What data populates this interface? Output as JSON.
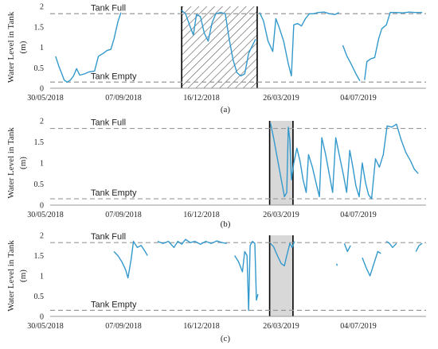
{
  "colors": {
    "series": "#3399cc",
    "reference_line": "#999999",
    "axis": "#999999",
    "shade_fill": "#d8d8d8",
    "hatch_stroke": "#555555",
    "highlight_border": "#000000"
  },
  "chart_data": [
    {
      "type": "line",
      "panel_label": "(a)",
      "ylabel_line1": "Water Level in  Tank",
      "ylabel_line2": "(m)",
      "xlabel": "",
      "x_tick_labels": [
        "30/05/2018",
        "07/09/2018",
        "16/12/2018",
        "26/03/2019",
        "04/07/2019"
      ],
      "y_ticks": [
        "0",
        "0.5",
        "1",
        "1.5",
        "2"
      ],
      "ylim": [
        0,
        2
      ],
      "xlim": [
        "2018-05-30",
        "2019-09-25"
      ],
      "grid": false,
      "reference_lines": [
        {
          "label": "Tank Full",
          "value": 1.82
        },
        {
          "label": "Tank Empty",
          "value": 0.15
        }
      ],
      "highlight": {
        "style": "hatched",
        "start": "2018-11-15",
        "end": "2019-02-20"
      },
      "series": [
        {
          "segments": [
            [
              [
                "2018-06-06",
                0.78
              ],
              [
                "2018-06-10",
                0.55
              ],
              [
                "2018-06-14",
                0.35
              ],
              [
                "2018-06-17",
                0.2
              ],
              [
                "2018-06-21",
                0.15
              ],
              [
                "2018-06-25",
                0.2
              ],
              [
                "2018-06-29",
                0.3
              ],
              [
                "2018-07-03",
                0.48
              ],
              [
                "2018-07-07",
                0.32
              ],
              [
                "2018-07-13",
                0.35
              ],
              [
                "2018-07-19",
                0.4
              ],
              [
                "2018-07-26",
                0.42
              ],
              [
                "2018-07-31",
                0.78
              ],
              [
                "2018-08-06",
                0.85
              ],
              [
                "2018-08-11",
                0.92
              ],
              [
                "2018-08-16",
                0.95
              ],
              [
                "2018-08-20",
                1.2
              ],
              [
                "2018-08-25",
                1.62
              ],
              [
                "2018-08-29",
                1.85
              ]
            ],
            [
              [
                "2018-11-15",
                1.9
              ],
              [
                "2018-11-20",
                1.82
              ],
              [
                "2018-11-25",
                1.55
              ],
              [
                "2018-11-30",
                1.3
              ],
              [
                "2018-12-04",
                1.8
              ],
              [
                "2018-12-09",
                1.75
              ],
              [
                "2018-12-14",
                1.35
              ],
              [
                "2018-12-19",
                1.15
              ],
              [
                "2018-12-24",
                1.6
              ],
              [
                "2018-12-29",
                1.82
              ],
              [
                "2019-01-04",
                1.85
              ],
              [
                "2019-01-10",
                1.82
              ],
              [
                "2019-01-15",
                1.2
              ],
              [
                "2019-01-20",
                0.7
              ],
              [
                "2019-01-25",
                0.38
              ],
              [
                "2019-01-30",
                0.3
              ],
              [
                "2019-02-04",
                0.35
              ],
              [
                "2019-02-09",
                0.85
              ],
              [
                "2019-02-14",
                1.05
              ],
              [
                "2019-02-18",
                1.2
              ]
            ],
            [
              [
                "2019-02-23",
                1.85
              ],
              [
                "2019-02-28",
                1.65
              ],
              [
                "2019-03-06",
                1.15
              ],
              [
                "2019-03-12",
                0.9
              ],
              [
                "2019-03-16",
                1.7
              ],
              [
                "2019-03-20",
                1.5
              ],
              [
                "2019-03-26",
                1.15
              ],
              [
                "2019-04-01",
                0.6
              ],
              [
                "2019-04-05",
                0.3
              ],
              [
                "2019-04-08",
                1.55
              ],
              [
                "2019-04-13",
                1.58
              ],
              [
                "2019-04-18",
                1.52
              ],
              [
                "2019-04-23",
                1.7
              ],
              [
                "2019-04-28",
                1.82
              ],
              [
                "2019-05-03",
                1.82
              ],
              [
                "2019-05-10",
                1.85
              ],
              [
                "2019-05-17",
                1.86
              ],
              [
                "2019-05-24",
                1.82
              ],
              [
                "2019-05-31",
                1.8
              ],
              [
                "2019-06-05",
                1.85
              ]
            ],
            [
              [
                "2019-06-10",
                1.05
              ],
              [
                "2019-06-15",
                0.8
              ],
              [
                "2019-06-21",
                0.58
              ],
              [
                "2019-06-27",
                0.35
              ],
              [
                "2019-07-02",
                0.18
              ]
            ],
            [
              [
                "2019-07-08",
                0.2
              ],
              [
                "2019-07-11",
                0.65
              ],
              [
                "2019-07-16",
                0.72
              ],
              [
                "2019-07-21",
                0.75
              ],
              [
                "2019-07-26",
                1.2
              ],
              [
                "2019-07-30",
                1.45
              ],
              [
                "2019-08-05",
                1.55
              ],
              [
                "2019-08-10",
                1.85
              ],
              [
                "2019-08-18",
                1.85
              ],
              [
                "2019-08-26",
                1.84
              ],
              [
                "2019-09-03",
                1.86
              ],
              [
                "2019-09-10",
                1.85
              ],
              [
                "2019-09-20",
                1.85
              ]
            ]
          ]
        }
      ]
    },
    {
      "type": "line",
      "panel_label": "(b)",
      "ylabel_line1": "Water Level in  Tank",
      "ylabel_line2": "(m)",
      "xlabel": "",
      "x_tick_labels": [
        "30/05/2018",
        "07/09/2018",
        "16/12/2018",
        "26/03/2019",
        "04/07/2019"
      ],
      "y_ticks": [
        "0",
        "0.5",
        "1",
        "1.5",
        "2"
      ],
      "ylim": [
        0,
        2
      ],
      "xlim": [
        "2018-05-30",
        "2019-09-25"
      ],
      "grid": false,
      "reference_lines": [
        {
          "label": "Tank Full",
          "value": 1.82
        },
        {
          "label": "Tank Empty",
          "value": 0.15
        }
      ],
      "highlight": {
        "style": "shaded",
        "start": "2019-03-08",
        "end": "2019-04-07"
      },
      "series": [
        {
          "segments": [
            [
              [
                "2019-03-09",
                1.95
              ],
              [
                "2019-03-13",
                1.6
              ],
              [
                "2019-03-17",
                1.2
              ],
              [
                "2019-03-21",
                0.8
              ],
              [
                "2019-03-25",
                0.4
              ],
              [
                "2019-03-27",
                0.2
              ],
              [
                "2019-03-30",
                0.3
              ],
              [
                "2019-04-01",
                1.85
              ],
              [
                "2019-04-03",
                1.55
              ],
              [
                "2019-04-05",
                0.6
              ],
              [
                "2019-04-08",
                1.0
              ],
              [
                "2019-04-12",
                1.35
              ],
              [
                "2019-04-16",
                1.05
              ],
              [
                "2019-04-20",
                0.6
              ],
              [
                "2019-04-24",
                0.3
              ],
              [
                "2019-04-27",
                1.2
              ],
              [
                "2019-05-02",
                0.9
              ],
              [
                "2019-05-07",
                0.5
              ],
              [
                "2019-05-11",
                0.2
              ],
              [
                "2019-05-14",
                1.6
              ],
              [
                "2019-05-19",
                1.2
              ],
              [
                "2019-05-24",
                0.7
              ],
              [
                "2019-05-28",
                0.3
              ],
              [
                "2019-06-01",
                1.6
              ],
              [
                "2019-06-06",
                1.15
              ],
              [
                "2019-06-11",
                0.7
              ],
              [
                "2019-06-15",
                0.3
              ],
              [
                "2019-06-19",
                1.3
              ],
              [
                "2019-06-23",
                0.9
              ],
              [
                "2019-06-27",
                0.45
              ],
              [
                "2019-07-01",
                0.2
              ],
              [
                "2019-07-05",
                1.0
              ],
              [
                "2019-07-09",
                0.55
              ],
              [
                "2019-07-13",
                0.25
              ],
              [
                "2019-07-17",
                0.15
              ],
              [
                "2019-07-22",
                1.1
              ],
              [
                "2019-07-27",
                0.9
              ],
              [
                "2019-08-01",
                1.2
              ],
              [
                "2019-08-06",
                1.88
              ],
              [
                "2019-08-12",
                1.85
              ],
              [
                "2019-08-18",
                1.92
              ],
              [
                "2019-08-24",
                1.55
              ],
              [
                "2019-08-30",
                1.25
              ],
              [
                "2019-09-05",
                1.05
              ],
              [
                "2019-09-10",
                0.85
              ],
              [
                "2019-09-15",
                0.75
              ]
            ]
          ]
        }
      ]
    },
    {
      "type": "line",
      "panel_label": "(c)",
      "ylabel_line1": "Water Level in  Tank",
      "ylabel_line2": "(m)",
      "xlabel": "",
      "x_tick_labels": [
        "30/05/2018",
        "07/09/2018",
        "16/12/2018",
        "26/03/2019",
        "04/07/2019"
      ],
      "y_ticks": [
        "0",
        "0.5",
        "1",
        "1.5",
        "2"
      ],
      "ylim": [
        0,
        2
      ],
      "xlim": [
        "2018-05-30",
        "2019-09-25"
      ],
      "grid": false,
      "reference_lines": [
        {
          "label": "Tank Full",
          "value": 1.82
        },
        {
          "label": "Tank Empty",
          "value": 0.15
        }
      ],
      "highlight": {
        "style": "shaded",
        "start": "2019-03-08",
        "end": "2019-04-07"
      },
      "series": [
        {
          "segments": [
            [
              [
                "2018-08-20",
                1.6
              ],
              [
                "2018-08-25",
                1.5
              ],
              [
                "2018-08-30",
                1.35
              ],
              [
                "2018-09-04",
                1.15
              ],
              [
                "2018-09-07",
                0.95
              ],
              [
                "2018-09-11",
                1.4
              ],
              [
                "2018-09-14",
                1.85
              ],
              [
                "2018-09-19",
                1.7
              ],
              [
                "2018-09-24",
                1.75
              ],
              [
                "2018-09-29",
                1.6
              ],
              [
                "2018-10-02",
                1.5
              ]
            ],
            [
              [
                "2018-10-15",
                1.85
              ],
              [
                "2018-10-22",
                1.8
              ],
              [
                "2018-10-29",
                1.85
              ],
              [
                "2018-11-05",
                1.7
              ],
              [
                "2018-11-10",
                1.85
              ],
              [
                "2018-11-15",
                1.78
              ],
              [
                "2018-11-20",
                1.9
              ],
              [
                "2018-11-26",
                1.82
              ],
              [
                "2018-12-02",
                1.85
              ],
              [
                "2018-12-09",
                1.78
              ],
              [
                "2018-12-16",
                1.85
              ],
              [
                "2018-12-23",
                1.8
              ],
              [
                "2018-12-30",
                1.86
              ],
              [
                "2019-01-06",
                1.82
              ],
              [
                "2019-01-12",
                1.8
              ]
            ],
            [
              [
                "2019-01-22",
                1.5
              ],
              [
                "2019-01-27",
                1.35
              ],
              [
                "2019-02-01",
                1.1
              ],
              [
                "2019-02-04",
                1.6
              ],
              [
                "2019-02-07",
                1.5
              ],
              [
                "2019-02-09",
                0.15
              ],
              [
                "2019-02-11",
                1.75
              ],
              [
                "2019-02-14",
                1.85
              ],
              [
                "2019-02-17",
                1.8
              ],
              [
                "2019-02-19",
                0.4
              ],
              [
                "2019-02-21",
                0.55
              ]
            ],
            [
              [
                "2019-03-09",
                1.8
              ],
              [
                "2019-03-13",
                1.72
              ],
              [
                "2019-03-18",
                1.5
              ],
              [
                "2019-03-23",
                1.3
              ],
              [
                "2019-03-27",
                1.25
              ],
              [
                "2019-03-30",
                1.5
              ],
              [
                "2019-04-03",
                1.8
              ],
              [
                "2019-04-06",
                1.7
              ],
              [
                "2019-04-09",
                1.85
              ]
            ],
            [
              [
                "2019-06-02",
                1.3
              ],
              [
                "2019-06-03",
                1.25
              ]
            ],
            [
              [
                "2019-06-12",
                1.8
              ],
              [
                "2019-06-16",
                1.6
              ],
              [
                "2019-06-20",
                1.75
              ]
            ],
            [
              [
                "2019-07-05",
                1.45
              ],
              [
                "2019-07-10",
                1.2
              ],
              [
                "2019-07-15",
                1.0
              ],
              [
                "2019-07-20",
                1.3
              ],
              [
                "2019-07-25",
                1.6
              ],
              [
                "2019-07-29",
                1.55
              ]
            ],
            [
              [
                "2019-08-05",
                1.85
              ],
              [
                "2019-08-09",
                1.8
              ],
              [
                "2019-08-13",
                1.7
              ],
              [
                "2019-08-18",
                1.8
              ]
            ],
            [
              [
                "2019-09-12",
                1.6
              ],
              [
                "2019-09-16",
                1.75
              ],
              [
                "2019-09-20",
                1.8
              ]
            ]
          ]
        }
      ]
    }
  ]
}
